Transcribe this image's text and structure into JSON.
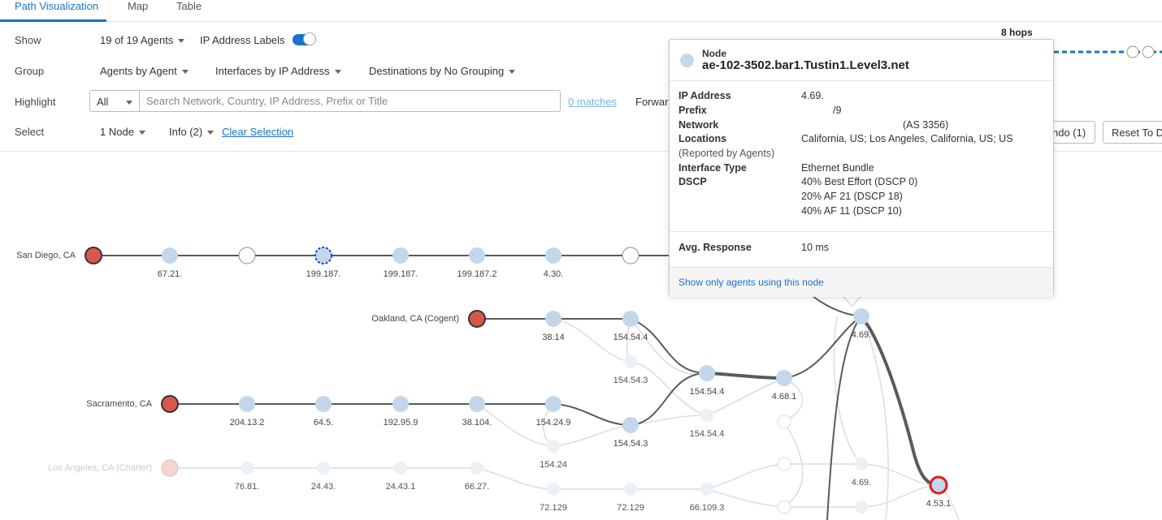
{
  "tabs": [
    "Path Visualization",
    "Map",
    "Table"
  ],
  "controls": {
    "show_label": "Show",
    "agents": "19 of 19 Agents",
    "ip_labels": "IP Address Labels",
    "group_label": "Group",
    "group_agents": "Agents by Agent",
    "group_interfaces": "Interfaces by IP Address",
    "group_destinations": "Destinations by No Grouping",
    "highlight_label": "Highlight",
    "highlight_scope": "All",
    "search_placeholder": "Search Network, Country, IP Address, Prefix or Title",
    "matches": "0 matches",
    "forward": "Forwar",
    "select_label": "Select",
    "nodes": "1 Node",
    "info": "Info (2)",
    "clear": "Clear Selection",
    "undo": "ndo (1)",
    "reset": "Reset To D"
  },
  "hops_label": "8 hops",
  "colors": {
    "accent": "#1a73c8",
    "agent": "#d9574a",
    "node": "#c2d8ea",
    "selected": "#e31b1b"
  },
  "tooltip": {
    "title": "Node",
    "name": "ae-102-3502.bar1.Tustin1.Level3.net",
    "fields": [
      {
        "key": "IP Address",
        "value": "4.69."
      },
      {
        "key": "Prefix",
        "value": "/9"
      },
      {
        "key": "Network",
        "value": "(AS 3356)"
      },
      {
        "key": "Locations",
        "value": "California, US; Los Angeles, California, US; US"
      },
      {
        "key": "(Reported by Agents)",
        "value": ""
      },
      {
        "key": "Interface Type",
        "value": "Ethernet Bundle"
      },
      {
        "key": "DSCP",
        "value": "40% Best Effort (DSCP 0)"
      },
      {
        "key": "",
        "value": "20% AF 21 (DSCP 18)"
      },
      {
        "key": "",
        "value": "40% AF 11 (DSCP 10)"
      },
      {
        "key": "Avg. Response",
        "value": "10 ms"
      }
    ],
    "link": "Show only agents using this node"
  },
  "graph": {
    "agents": [
      {
        "name": "San Diego, CA",
        "faded": false
      },
      {
        "name": "Oakland, CA (Cogent)",
        "faded": false
      },
      {
        "name": "Sacramento, CA",
        "faded": false
      },
      {
        "name": "Los Angeles, CA (Charter)",
        "faded": true
      }
    ],
    "node_labels": [
      "67.21.",
      "199.187.",
      "199.187.",
      "199.187.2",
      "4.30.",
      "38.14",
      "154.54.4",
      "154.54.3",
      "154.54.4",
      "4.68.1",
      "4.69.",
      "204.13.2",
      "64.5.",
      "192.95.9",
      "38.104.",
      "154.24.9",
      "154.54.3",
      "154.54.4",
      "154.24",
      "76.81.",
      "24.43.",
      "24.43.1",
      "66.27.",
      "72.129",
      "72.129",
      "66.109.3",
      "4.69.",
      "4.53.1"
    ]
  }
}
